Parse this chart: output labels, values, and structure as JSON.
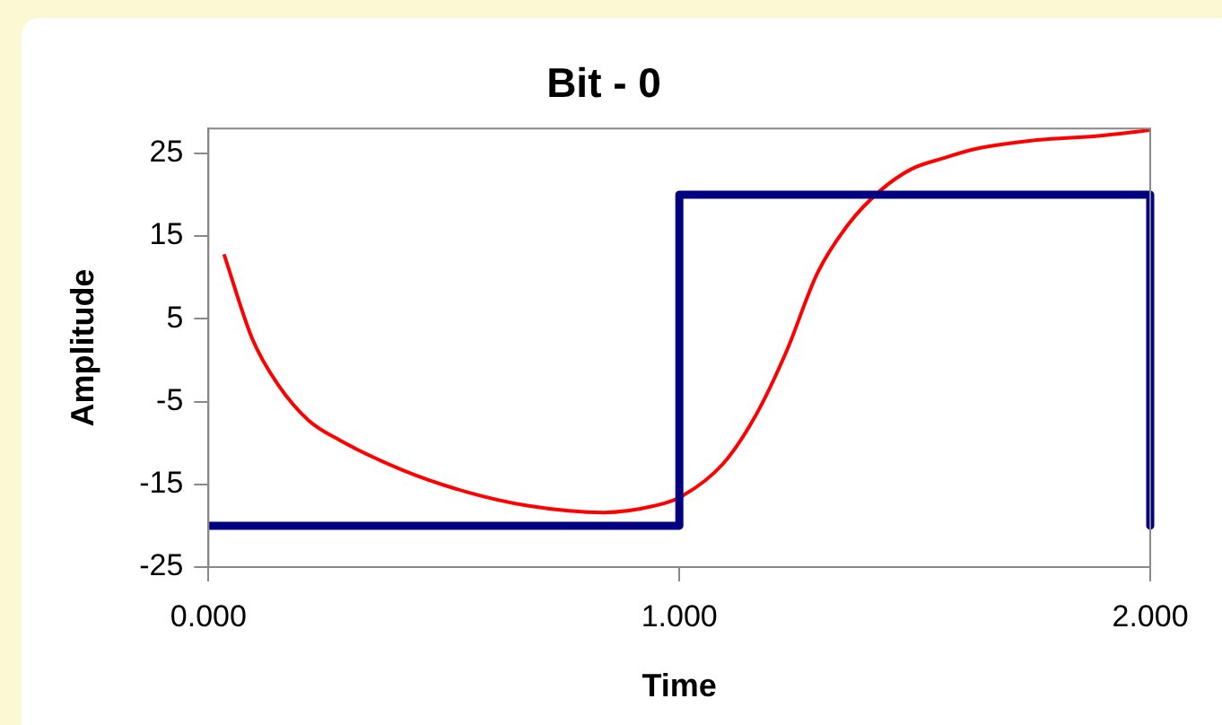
{
  "chart_data": {
    "type": "line",
    "title": "Bit - 0",
    "xlabel": "Time",
    "ylabel": "Amplitude",
    "xlim": [
      0,
      2
    ],
    "xticks": [
      {
        "value": 0,
        "label": "0.000"
      },
      {
        "value": 1,
        "label": "1.000"
      },
      {
        "value": 2,
        "label": "2.000"
      }
    ],
    "ylim": [
      -25,
      28
    ],
    "yticks": [
      25,
      15,
      5,
      -5,
      -15,
      -25
    ],
    "grid": false,
    "legend": false,
    "marker": "none",
    "line_style": "solid",
    "series": [
      {
        "color": "#000080",
        "x": [
          0,
          1,
          1,
          2,
          2
        ],
        "values": [
          -20,
          -20,
          20,
          20,
          -20
        ]
      },
      {
        "color": "#ff0000",
        "x": [
          0.033,
          0.093,
          0.147,
          0.213,
          0.28,
          0.413,
          0.547,
          0.68,
          0.84,
          0.947,
          1.0,
          1.093,
          1.16,
          1.227,
          1.293,
          1.36,
          1.427,
          1.493,
          1.56,
          1.627,
          1.76,
          1.89,
          2.0
        ],
        "values": [
          12.8,
          2.6,
          -2.9,
          -7.3,
          -9.7,
          -13.3,
          -15.9,
          -17.6,
          -18.4,
          -17.6,
          -16.6,
          -12.5,
          -6.9,
          1.0,
          10.5,
          16.5,
          20.5,
          23.1,
          24.4,
          25.5,
          26.6,
          27.1,
          27.8
        ]
      }
    ]
  }
}
